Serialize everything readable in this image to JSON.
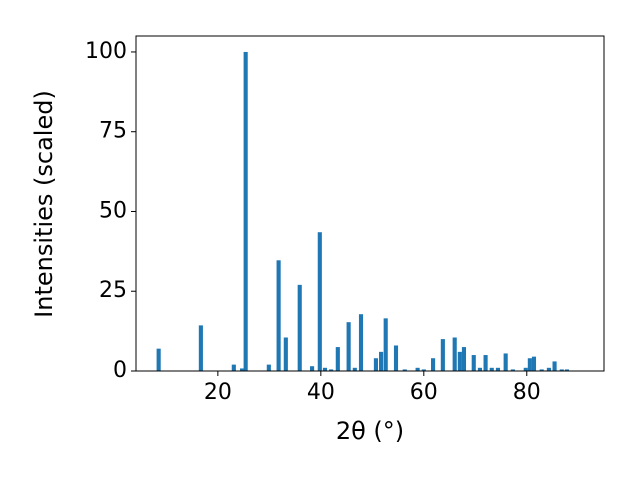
{
  "chart_data": {
    "type": "bar",
    "xlabel": "2θ (°)",
    "ylabel": "Intensities (scaled)",
    "x": [
      8.5,
      16.7,
      23.1,
      24.7,
      25.4,
      29.9,
      31.8,
      33.2,
      35.9,
      38.3,
      39.8,
      40.8,
      42.0,
      43.3,
      45.4,
      46.6,
      47.8,
      50.7,
      51.7,
      52.6,
      54.6,
      56.3,
      58.8,
      60.0,
      61.8,
      63.7,
      66.0,
      67.0,
      67.8,
      69.7,
      70.9,
      72.0,
      73.2,
      74.4,
      75.9,
      77.3,
      79.8,
      80.6,
      81.4,
      82.9,
      84.3,
      85.4,
      86.8,
      87.8
    ],
    "values": [
      7,
      14.3,
      2,
      0.8,
      100,
      2,
      34.7,
      10.5,
      27,
      1.5,
      43.5,
      1,
      0.5,
      7.5,
      15.3,
      1,
      17.8,
      4,
      6,
      16.5,
      8,
      0.5,
      1,
      0.5,
      4,
      10,
      10.5,
      6,
      7.5,
      5,
      1,
      5,
      1,
      1,
      5.5,
      0.5,
      1,
      4,
      4.5,
      0.5,
      1,
      3,
      0.5,
      0.5
    ],
    "color": "#1f77b4",
    "xlim": [
      4.1,
      95.0
    ],
    "xticks": [
      20,
      40,
      60,
      80
    ],
    "ylim": [
      0,
      105
    ],
    "yticks": [
      0,
      25,
      50,
      75,
      100
    ],
    "grid": false
  }
}
